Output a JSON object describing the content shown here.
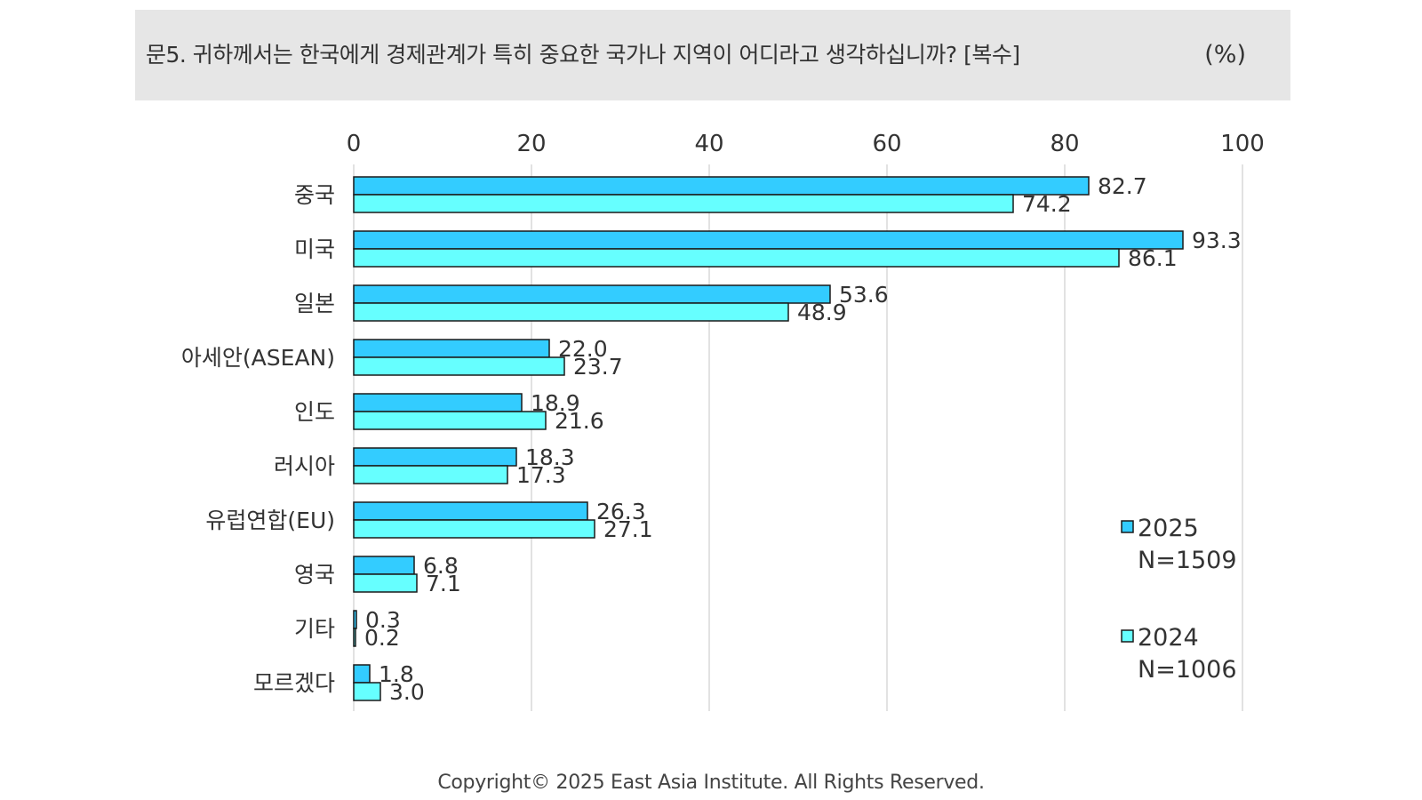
{
  "header": {
    "question": "문5. 귀하께서는 한국에게 경제관계가 특히 중요한 국가나 지역이 어디라고 생각하십니까? [복수]",
    "unit": "(%)"
  },
  "chart_data": {
    "type": "bar",
    "orientation": "horizontal",
    "title": "문5. 귀하께서는 한국에게 경제관계가 특히 중요한 국가나 지역이 어디라고 생각하십니까? [복수]",
    "xlabel": "",
    "ylabel": "",
    "xlim": [
      0,
      100
    ],
    "ticks": [
      "0",
      "20",
      "40",
      "60",
      "80",
      "100"
    ],
    "tick_values": [
      0,
      20,
      40,
      60,
      80,
      100
    ],
    "grid": true,
    "legend_position": "right",
    "categories": [
      "중국",
      "미국",
      "일본",
      "아세안(ASEAN)",
      "인도",
      "러시아",
      "유럽연합(EU)",
      "영국",
      "기타",
      "모르겠다"
    ],
    "series": [
      {
        "name": "2025",
        "sample": "N=1509",
        "color": "#33ccff",
        "values": [
          82.7,
          93.3,
          53.6,
          22.0,
          18.9,
          18.3,
          26.3,
          6.8,
          0.3,
          1.8
        ],
        "labels": [
          "82.7",
          "93.3",
          "53.6",
          "22.0",
          "18.9",
          "18.3",
          "26.3",
          "6.8",
          "0.3",
          "1.8"
        ]
      },
      {
        "name": "2024",
        "sample": "N=1006",
        "color": "#66ffff",
        "values": [
          74.2,
          86.1,
          48.9,
          23.7,
          21.6,
          17.3,
          27.1,
          7.1,
          0.2,
          3.0
        ],
        "labels": [
          "74.2",
          "86.1",
          "48.9",
          "23.7",
          "21.6",
          "17.3",
          "27.1",
          "7.1",
          "0.2",
          "3.0"
        ]
      }
    ]
  },
  "footer": {
    "copyright": "Copyright© 2025 East Asia Institute. All Rights Reserved."
  }
}
